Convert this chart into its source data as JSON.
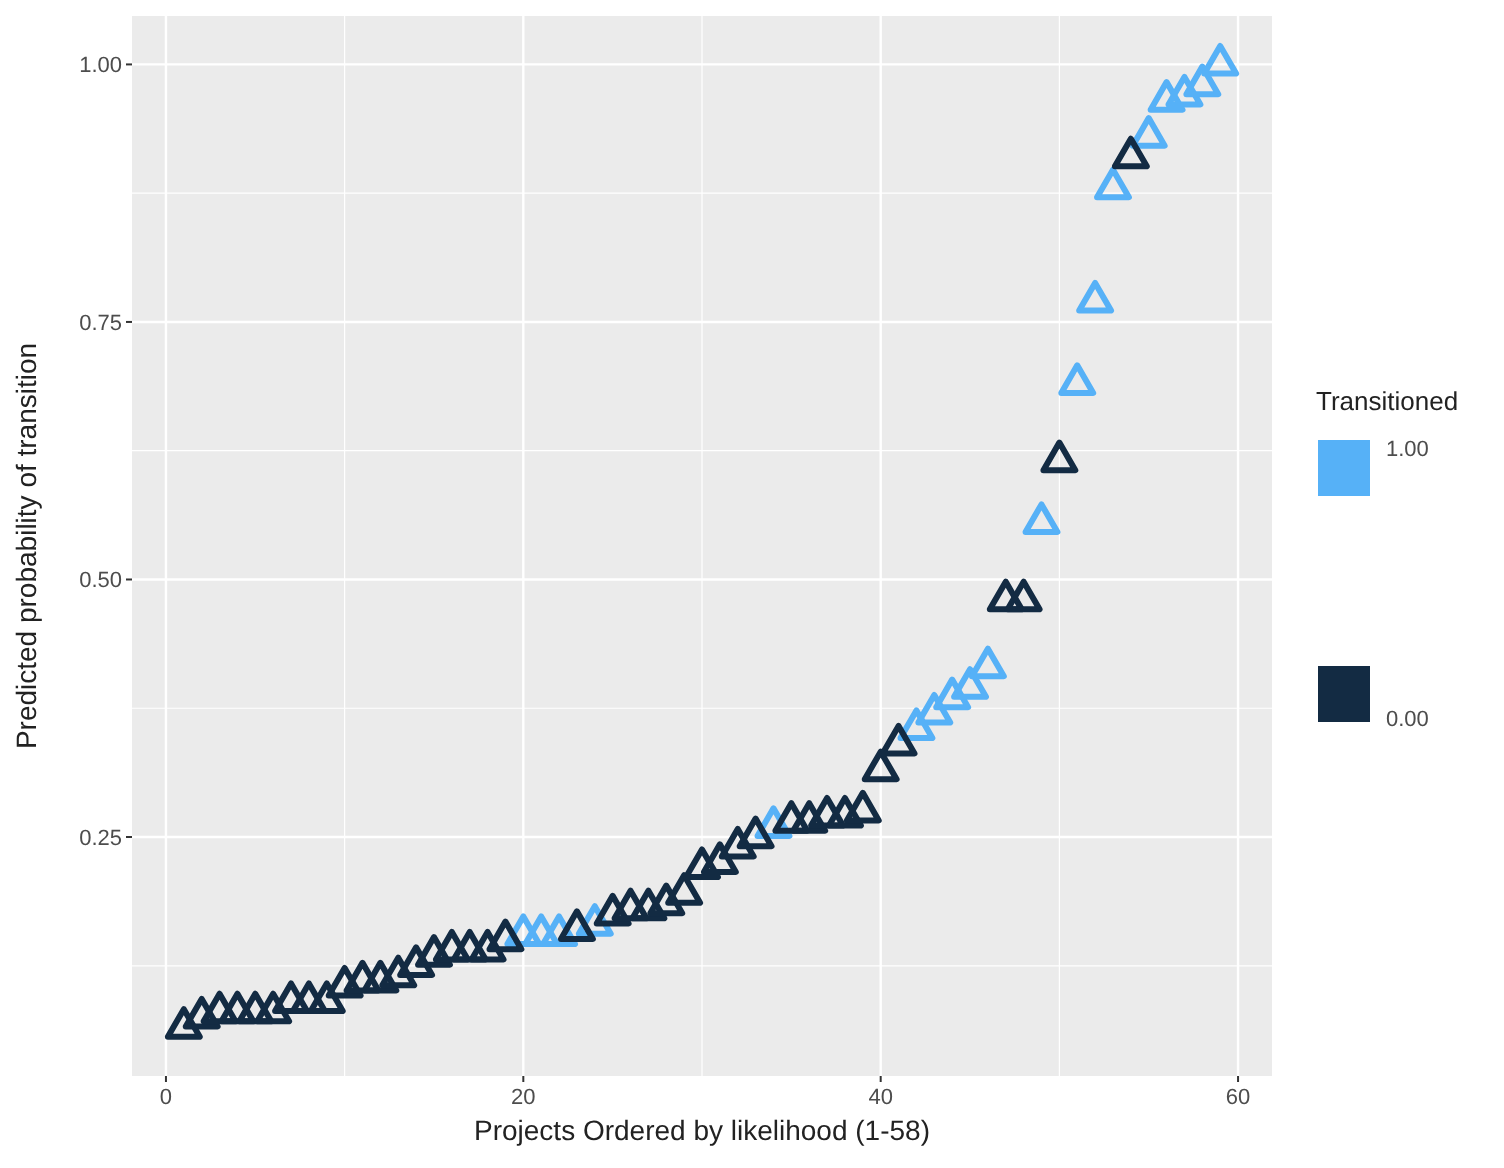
{
  "chart_data": {
    "type": "scatter",
    "xlabel": "Projects Ordered by likelihood (1-58)",
    "ylabel": "Predicted probability of transition",
    "legend_title": "Transitioned",
    "legend": "right",
    "grid": true,
    "marker": "triangle",
    "xlim": [
      -1.9,
      61.9
    ],
    "xticks": [
      0,
      20,
      40,
      60
    ],
    "ylim": [
      0.018,
      1.047
    ],
    "yticks": [
      {
        "value": 0.25,
        "label": "0.25"
      },
      {
        "value": 0.5,
        "label": "0.50"
      },
      {
        "value": 0.75,
        "label": "0.75"
      },
      {
        "value": 1.0,
        "label": "1.00"
      }
    ],
    "series": [
      {
        "name": "1.00",
        "color": "#56b1f7",
        "x": [
          20,
          21,
          22,
          24,
          34,
          42,
          43,
          44,
          45,
          46,
          49,
          51,
          52,
          53,
          55,
          56,
          57,
          58,
          59
        ],
        "values": [
          0.155,
          0.155,
          0.155,
          0.165,
          0.26,
          0.355,
          0.37,
          0.385,
          0.395,
          0.415,
          0.555,
          0.69,
          0.77,
          0.88,
          0.93,
          0.965,
          0.97,
          0.98,
          1.0
        ]
      },
      {
        "name": "0.00",
        "color": "#132b43",
        "x": [
          1,
          2,
          3,
          4,
          5,
          6,
          7,
          8,
          9,
          10,
          11,
          12,
          13,
          14,
          15,
          16,
          17,
          18,
          19,
          23,
          25,
          26,
          27,
          28,
          29,
          30,
          31,
          32,
          33,
          35,
          36,
          37,
          38,
          39,
          40,
          41,
          47,
          48,
          50,
          54
        ],
        "values": [
          0.065,
          0.075,
          0.08,
          0.08,
          0.08,
          0.08,
          0.09,
          0.09,
          0.09,
          0.105,
          0.11,
          0.11,
          0.115,
          0.125,
          0.135,
          0.14,
          0.14,
          0.14,
          0.15,
          0.16,
          0.175,
          0.18,
          0.18,
          0.185,
          0.195,
          0.22,
          0.225,
          0.24,
          0.25,
          0.265,
          0.265,
          0.27,
          0.27,
          0.275,
          0.315,
          0.34,
          0.48,
          0.48,
          0.615,
          0.91
        ]
      }
    ]
  }
}
